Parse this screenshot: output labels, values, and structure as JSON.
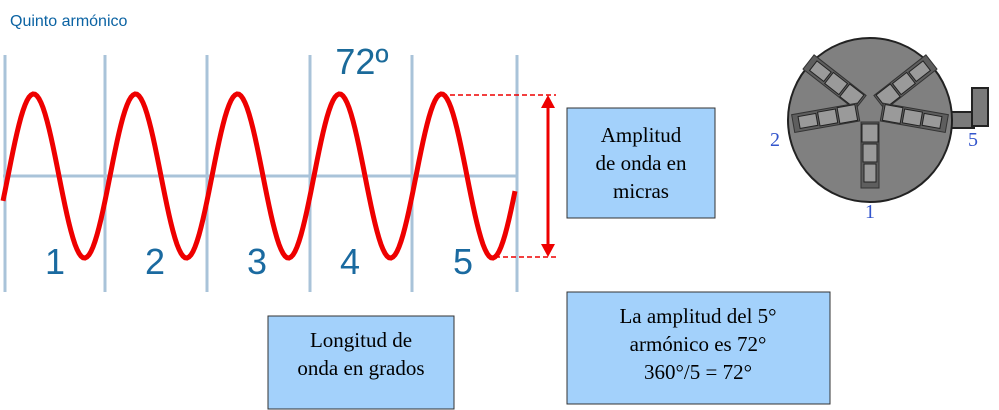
{
  "header": {
    "title": "Quinto armónico",
    "angle": "72º"
  },
  "segments": [
    "1",
    "2",
    "3",
    "4",
    "5"
  ],
  "boxes": {
    "amplitude": {
      "lines": [
        "Amplitud",
        "de onda en",
        "micras"
      ]
    },
    "wavelength": {
      "lines": [
        "Longitud de",
        "onda en grados"
      ]
    },
    "harmonic": {
      "lines": [
        "La amplitud del 5°",
        "armónico es 72°",
        "360°/5 = 72°"
      ]
    }
  },
  "chuck": {
    "labels": [
      "2",
      "5",
      "1"
    ]
  }
}
